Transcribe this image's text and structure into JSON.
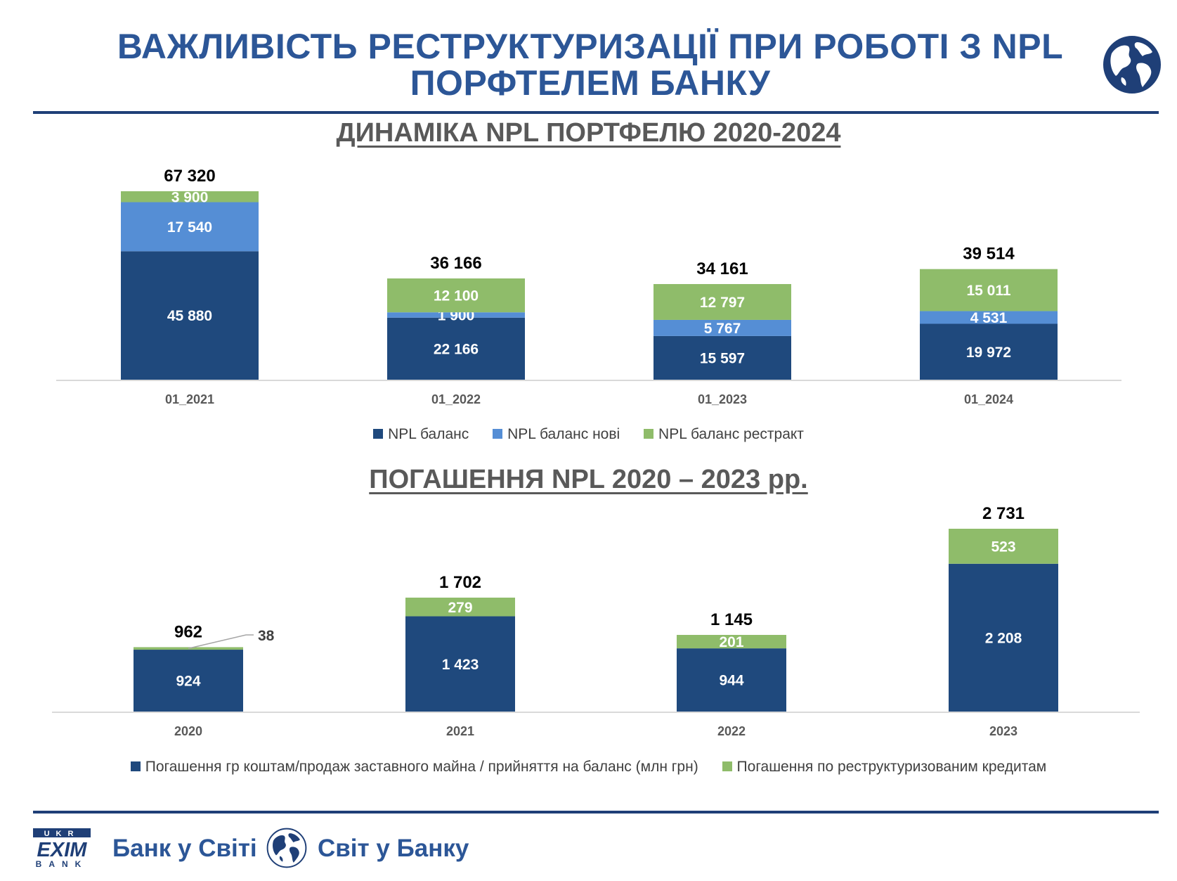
{
  "header": {
    "title_line1": "ВАЖЛИВІСТЬ РЕСТРУКТУРИЗАЦІЇ ПРИ РОБОТІ З NPL",
    "title_line2": "ПОРФТЕЛЕМ БАНКУ"
  },
  "colors": {
    "title": "#2c5697",
    "rule": "#1f3f77",
    "npl_balance": "#1f497d",
    "npl_new": "#558ed5",
    "npl_restructured": "#8fbc6a"
  },
  "chart_data": [
    {
      "type": "bar",
      "stacked": true,
      "title": "ДИНАМІКА NPL ПОРТФЕЛЮ 2020-2024",
      "categories": [
        "01_2021",
        "01_2022",
        "01_2023",
        "01_2024"
      ],
      "series": [
        {
          "name": "NPL баланс",
          "values": [
            45880,
            22166,
            15597,
            19972
          ],
          "labels": [
            "45 880",
            "22 166",
            "15 597",
            "19 972"
          ],
          "color": "#1f497d"
        },
        {
          "name": "NPL баланс нові",
          "values": [
            17540,
            1900,
            5767,
            4531
          ],
          "labels": [
            "17 540",
            "1 900",
            "5 767",
            "4 531"
          ],
          "color": "#558ed5"
        },
        {
          "name": "NPL баланс рестракт",
          "values": [
            3900,
            12100,
            12797,
            15011
          ],
          "labels": [
            "3 900",
            "12 100",
            "12 797",
            "15 011"
          ],
          "color": "#8fbc6a"
        }
      ],
      "totals": [
        67320,
        36166,
        34161,
        39514
      ],
      "total_labels": [
        "67 320",
        "36 166",
        "34 161",
        "39 514"
      ],
      "ylim": [
        0,
        67320
      ],
      "grid": false,
      "legend": "bottom"
    },
    {
      "type": "bar",
      "stacked": true,
      "title": "ПОГАШЕННЯ NPL 2020 – 2023 рр.",
      "categories": [
        "2020",
        "2021",
        "2022",
        "2023"
      ],
      "series": [
        {
          "name": "Погашення гр коштам/продаж заставного майна / прийняття на баланс (млн грн)",
          "values": [
            924,
            1423,
            944,
            2208
          ],
          "labels": [
            "924",
            "1 423",
            "944",
            "2 208"
          ],
          "color": "#1f497d"
        },
        {
          "name": "Погашення по реструктуризованим кредитам",
          "values": [
            38,
            279,
            201,
            523
          ],
          "labels": [
            "38",
            "279",
            "201",
            "523"
          ],
          "color": "#8fbc6a"
        }
      ],
      "totals": [
        962,
        1702,
        1145,
        2731
      ],
      "total_labels": [
        "962",
        "1 702",
        "1 145",
        "2 731"
      ],
      "ylim": [
        0,
        2731
      ],
      "grid": false,
      "legend": "bottom"
    }
  ],
  "footer": {
    "logo_text_top": "UKR",
    "logo_text_mid": "EXIM",
    "logo_text_bottom": "BANK",
    "slogan_left": "Банк у Світі",
    "slogan_right": "Світ у Банку"
  }
}
